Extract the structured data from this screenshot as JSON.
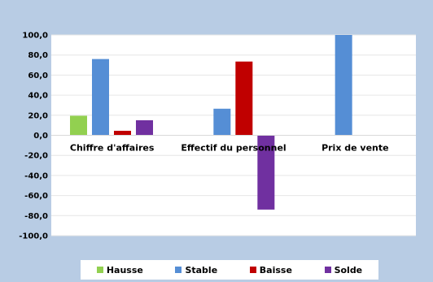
{
  "chart_data": {
    "type": "bar",
    "categories": [
      "Chiffre d'affaires",
      "Effectif du personnel",
      "Prix de vente"
    ],
    "series": [
      {
        "name": "Hausse",
        "color": "#92d050",
        "values": [
          19.5,
          0,
          0
        ]
      },
      {
        "name": "Stable",
        "color": "#558ed5",
        "values": [
          76,
          26.5,
          100
        ]
      },
      {
        "name": "Baisse",
        "color": "#c00000",
        "values": [
          4.5,
          73.5,
          0
        ]
      },
      {
        "name": "Solde",
        "color": "#7030a0",
        "values": [
          15,
          -74,
          0
        ]
      }
    ],
    "ylim": [
      -100,
      100
    ],
    "yticks": [
      "100,0",
      "80,0",
      "60,0",
      "40,0",
      "20,0",
      "0,0",
      "-20,0",
      "-40,0",
      "-60,0",
      "-80,0",
      "-100,0"
    ],
    "ytick_values": [
      100,
      80,
      60,
      40,
      20,
      0,
      -20,
      -40,
      -60,
      -80,
      -100
    ],
    "grid": true,
    "legend_position": "bottom",
    "title": "",
    "xlabel": "",
    "ylabel": ""
  }
}
